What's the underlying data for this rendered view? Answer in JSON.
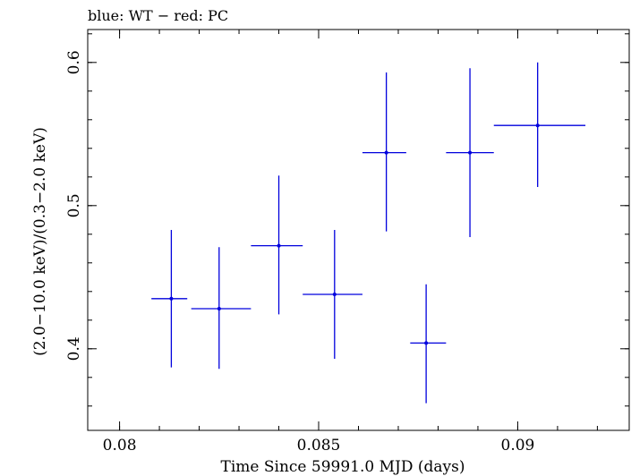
{
  "chart_data": {
    "type": "scatter",
    "title": "blue: WT − red: PC",
    "xlabel": "Time Since 59991.0 MJD (days)",
    "ylabel": "(2.0−10.0 keV)/(0.3−2.0 keV)",
    "xlim": [
      0.0792,
      0.0928
    ],
    "ylim": [
      0.343,
      0.623
    ],
    "xticks": [
      {
        "value": 0.08,
        "label": "0.08"
      },
      {
        "value": 0.085,
        "label": "0.085"
      },
      {
        "value": 0.09,
        "label": "0.09"
      }
    ],
    "yticks": [
      {
        "value": 0.4,
        "label": "0.4"
      },
      {
        "value": 0.5,
        "label": "0.5"
      },
      {
        "value": 0.6,
        "label": "0.6"
      }
    ],
    "grid": false,
    "series": [
      {
        "color": "#0000dd",
        "points": [
          {
            "x": 0.0813,
            "xlo": 0.0808,
            "xhi": 0.0817,
            "y": 0.435,
            "ylo": 0.387,
            "yhi": 0.483
          },
          {
            "x": 0.0825,
            "xlo": 0.0818,
            "xhi": 0.0833,
            "y": 0.428,
            "ylo": 0.386,
            "yhi": 0.471
          },
          {
            "x": 0.084,
            "xlo": 0.0833,
            "xhi": 0.0846,
            "y": 0.472,
            "ylo": 0.424,
            "yhi": 0.521
          },
          {
            "x": 0.0854,
            "xlo": 0.0846,
            "xhi": 0.0861,
            "y": 0.438,
            "ylo": 0.393,
            "yhi": 0.483
          },
          {
            "x": 0.0867,
            "xlo": 0.0861,
            "xhi": 0.0872,
            "y": 0.537,
            "ylo": 0.482,
            "yhi": 0.593
          },
          {
            "x": 0.0877,
            "xlo": 0.0873,
            "xhi": 0.0882,
            "y": 0.404,
            "ylo": 0.362,
            "yhi": 0.445
          },
          {
            "x": 0.0888,
            "xlo": 0.0882,
            "xhi": 0.0894,
            "y": 0.537,
            "ylo": 0.478,
            "yhi": 0.596
          },
          {
            "x": 0.0905,
            "xlo": 0.0894,
            "xhi": 0.0917,
            "y": 0.556,
            "ylo": 0.513,
            "yhi": 0.6
          }
        ]
      }
    ]
  }
}
